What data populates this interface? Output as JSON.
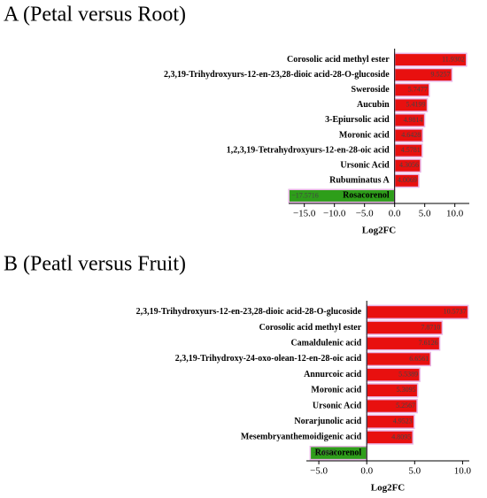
{
  "chart_data": [
    {
      "type": "barh",
      "title": "A (Petal versus Root)",
      "xlabel": "Log2FC",
      "categories": [
        "Corosolic acid methyl ester",
        "2,3,19-Trihydroxyurs-12-en-23,28-dioic acid-28-O-glucoside",
        "Sweroside",
        "Aucubin",
        "3-Epiursolic acid",
        "Moronic acid",
        "1,2,3,19-Tetrahydroxyurs-12-en-28-oic acid",
        "Ursonic Acid",
        "Rubuminatus A",
        "Rosacorenol"
      ],
      "values": [
        11.9302,
        9.5257,
        5.7477,
        5.4199,
        4.9814,
        4.6428,
        4.5781,
        4.3056,
        4.0069,
        -17.5716
      ],
      "value_labels": [
        "11.9302",
        "9.5257",
        "5.7477",
        "5.4199",
        "4.9814",
        "4.6428",
        "4.5781",
        "4.3056",
        "4.0069",
        "−17.5716"
      ],
      "positive_color": "#e8100f",
      "negative_color": "#2e9e1a",
      "xlim": [
        -17.6,
        12.4
      ],
      "xticks": [
        {
          "value": -15,
          "label": "−15.0"
        },
        {
          "value": -10,
          "label": "−10.0"
        },
        {
          "value": -5,
          "label": "−5.0"
        },
        {
          "value": 0,
          "label": "0.0"
        },
        {
          "value": 5,
          "label": "5.0"
        },
        {
          "value": 10,
          "label": "10.0"
        }
      ]
    },
    {
      "type": "barh",
      "title": "B (Peatl versus Fruit)",
      "xlabel": "Log2FC",
      "categories": [
        "2,3,19-Trihydroxyurs-12-en-23,28-dioic acid-28-O-glucoside",
        "Corosolic acid methyl ester",
        "Camaldulenic acid",
        "2,3,19-Trihydroxy-24-oxo-olean-12-en-28-oic acid",
        "Annurcoic acid",
        "Moronic acid",
        "Ursonic Acid",
        "Norarjunolic acid",
        "Mesembryanthemoidigenic acid",
        "Rosacorenol"
      ],
      "values": [
        10.5737,
        7.871,
        7.6126,
        6.6561,
        5.5389,
        5.3095,
        5.2567,
        4.9523,
        4.8095,
        -5.8975
      ],
      "value_labels": [
        "10.5737",
        "7.8710",
        "7.6126",
        "6.6561",
        "5.5389",
        "5.3095",
        "5.2567",
        "4.9523",
        "4.8095",
        "−5.8975"
      ],
      "positive_color": "#e8100f",
      "negative_color": "#2e9e1a",
      "xlim": [
        -6.3,
        10.7
      ],
      "xticks": [
        {
          "value": -5,
          "label": "−5.0"
        },
        {
          "value": 0,
          "label": "0.0"
        },
        {
          "value": 5,
          "label": "5.0"
        },
        {
          "value": 10,
          "label": "10.0"
        }
      ]
    }
  ]
}
